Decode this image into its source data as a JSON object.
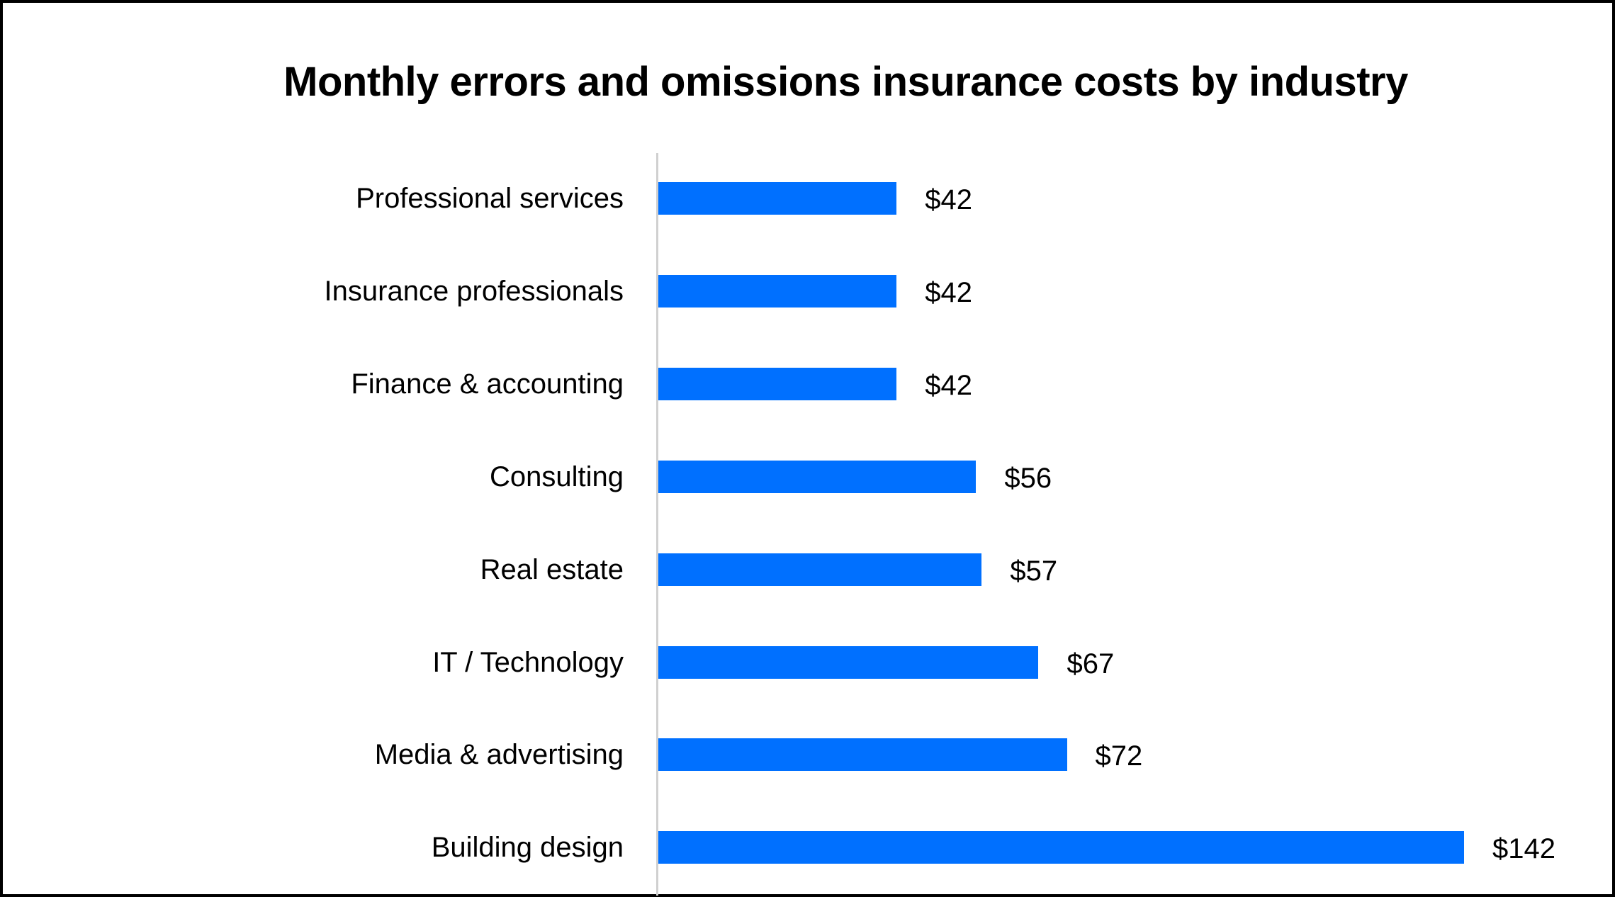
{
  "chart_data": {
    "type": "bar",
    "orientation": "horizontal",
    "title": "Monthly errors and omissions insurance costs by industry",
    "xlabel": "",
    "ylabel": "",
    "categories": [
      "Professional services",
      "Insurance professionals",
      "Finance & accounting",
      "Consulting",
      "Real estate",
      "IT / Technology",
      "Media & advertising",
      "Building design"
    ],
    "values": [
      42,
      42,
      42,
      56,
      57,
      67,
      72,
      142
    ],
    "value_labels": [
      "$42",
      "$42",
      "$42",
      "$56",
      "$57",
      "$67",
      "$72",
      "$142"
    ],
    "unit": "USD per month",
    "xlim": [
      0,
      142
    ],
    "grid": false,
    "legend": null,
    "bar_color": "#0070FF"
  },
  "colors": {
    "bar": "#0070FF",
    "axis": "#D0D0D0",
    "text": "#000000",
    "border": "#000000"
  }
}
